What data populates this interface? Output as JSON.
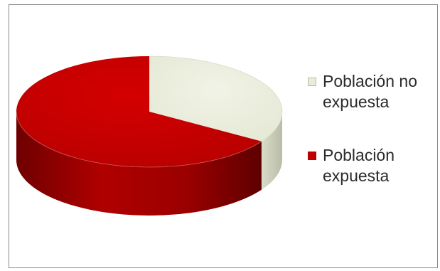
{
  "chart_data": {
    "type": "pie",
    "style": "3d",
    "categories": [
      "Población no expuesta",
      "Población expuesta"
    ],
    "values": [
      34,
      66
    ],
    "colors": [
      "#e8ecd8",
      "#c00000"
    ],
    "legend_position": "right",
    "title": ""
  },
  "legend": {
    "items": [
      {
        "label": "Población no expuesta",
        "color": "#e8ecd8"
      },
      {
        "label": "Población expuesta",
        "color": "#c00000"
      }
    ]
  }
}
